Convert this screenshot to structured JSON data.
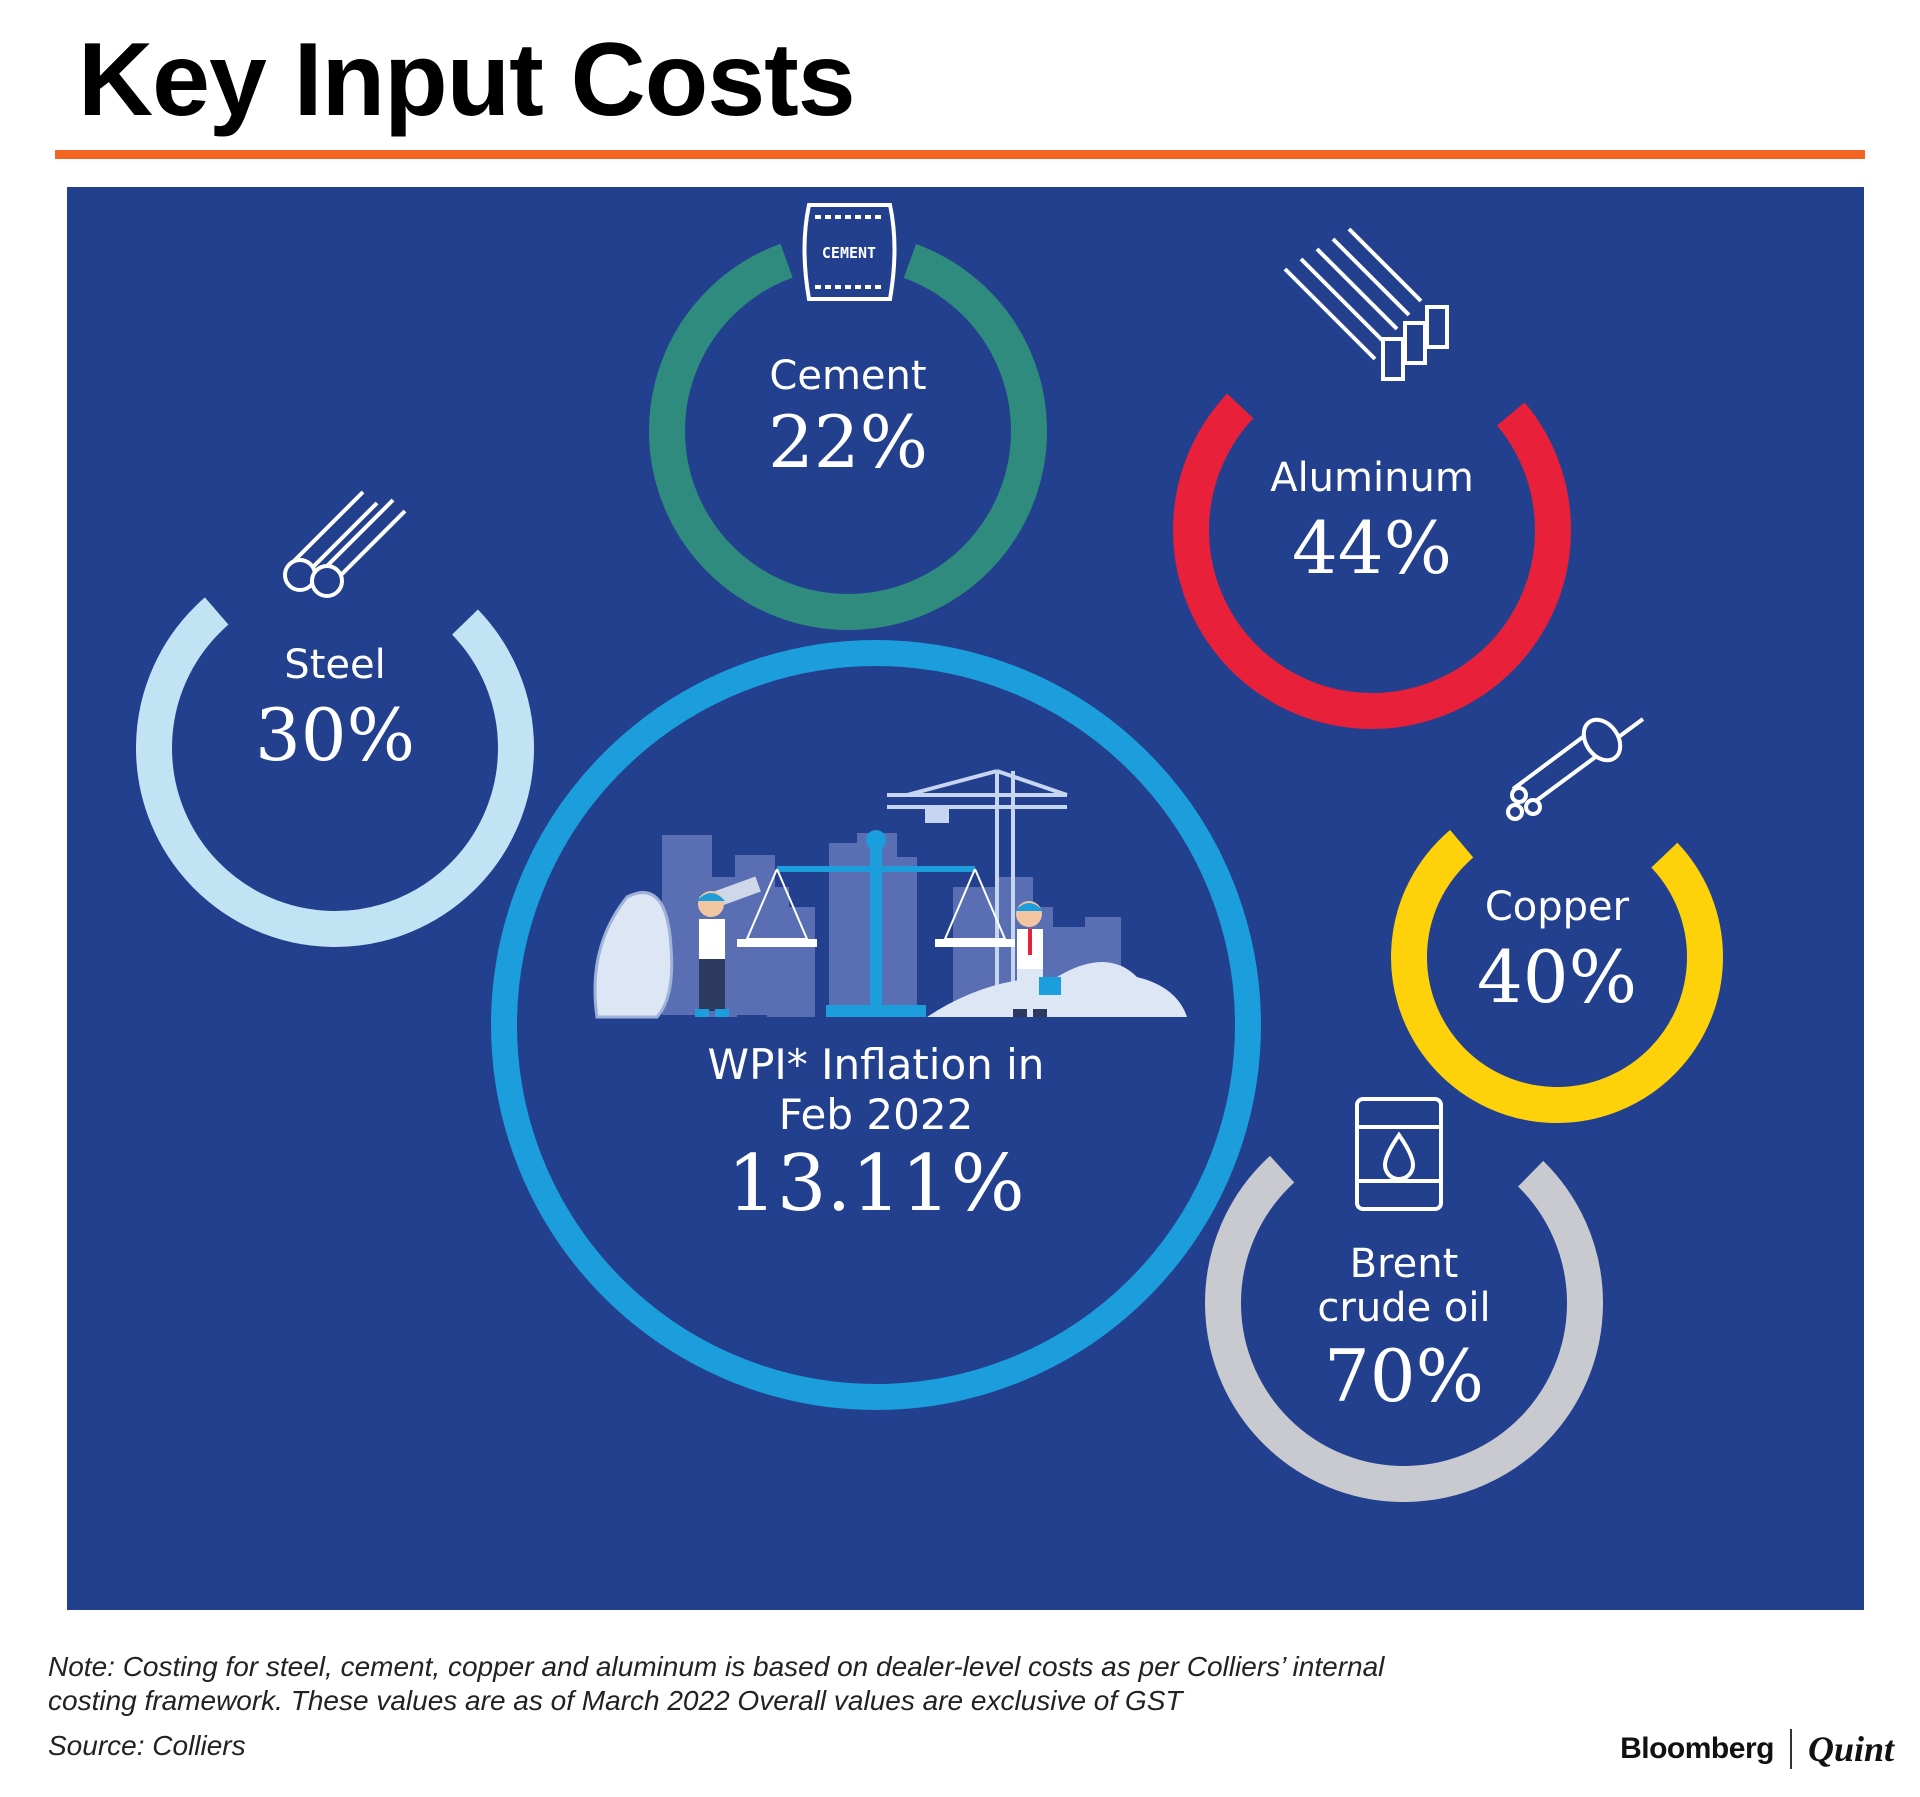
{
  "header": {
    "title": "Key Input Costs"
  },
  "items": [
    {
      "label": "Cement",
      "value": "22%",
      "icon": "cement-bag-icon",
      "icon_text": "CEMENT",
      "color": "#2e8b7e"
    },
    {
      "label": "Aluminum",
      "value": "44%",
      "icon": "aluminum-bars-icon",
      "color": "#e8203a"
    },
    {
      "label": "Steel",
      "value": "30%",
      "icon": "steel-pipes-icon",
      "color": "#c2e3f3"
    },
    {
      "label": "Copper",
      "value": "40%",
      "icon": "copper-cable-icon",
      "color": "#fdd20a"
    },
    {
      "label": "Brent",
      "label2": "crude oil",
      "value": "70%",
      "icon": "oil-barrel-icon",
      "color": "#c9c9d0"
    }
  ],
  "wpi": {
    "line1": "WPI* Inflation in",
    "line2": "Feb 2022",
    "value": "13.11%",
    "color": "#1b9edb",
    "illustration": "construction-balance-scale-illustration"
  },
  "footer": {
    "note_line1": "Note: Costing for steel, cement, copper and aluminum is based on dealer-level costs as per Colliers’ internal",
    "note_line2": "costing framework. These values are as of March 2022 Overall values are exclusive of GST",
    "source": "Source: Colliers",
    "logo_left": "Bloomberg",
    "logo_right": "Quint"
  },
  "colors": {
    "panel_bg": "#23408e",
    "accent_rule": "#f26522"
  }
}
